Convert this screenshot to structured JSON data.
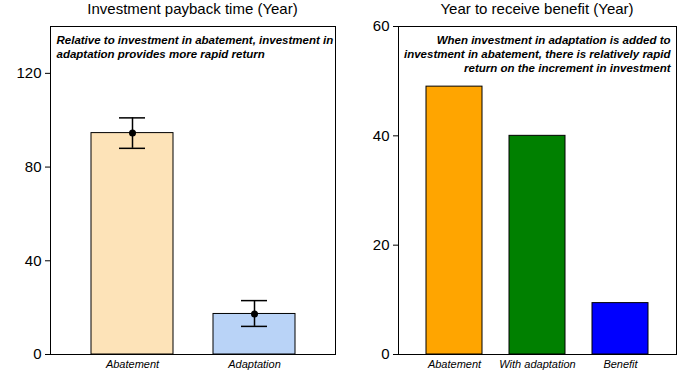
{
  "chart_data": [
    {
      "type": "bar",
      "title": "Investment payback time (Year)",
      "annotation": "Relative to investment in abatement, investment in adaptation provides more rapid return",
      "categories": [
        "Abatement",
        "Adaptation"
      ],
      "values": [
        94.5,
        17.3
      ],
      "error_low": [
        88,
        12
      ],
      "error_high": [
        101,
        23
      ],
      "colors": [
        "#fde3b8",
        "#b9d3f7"
      ],
      "marker": "circle",
      "ylim": [
        0,
        140
      ],
      "yticks": [
        0,
        40,
        80,
        120
      ],
      "grid": false
    },
    {
      "type": "bar",
      "title": "Year to receive benefit (Year)",
      "annotation": "When investment in adaptation is added to investment in abatement, there is relatively rapid return on the increment in investment",
      "categories": [
        "Abatement",
        "With adaptation",
        "Benefit"
      ],
      "values": [
        49,
        40,
        9.4
      ],
      "colors": [
        "#ffa500",
        "#008000",
        "#0000ff"
      ],
      "ylim": [
        0,
        60
      ],
      "yticks": [
        0,
        20,
        40,
        60
      ],
      "grid": false
    }
  ]
}
